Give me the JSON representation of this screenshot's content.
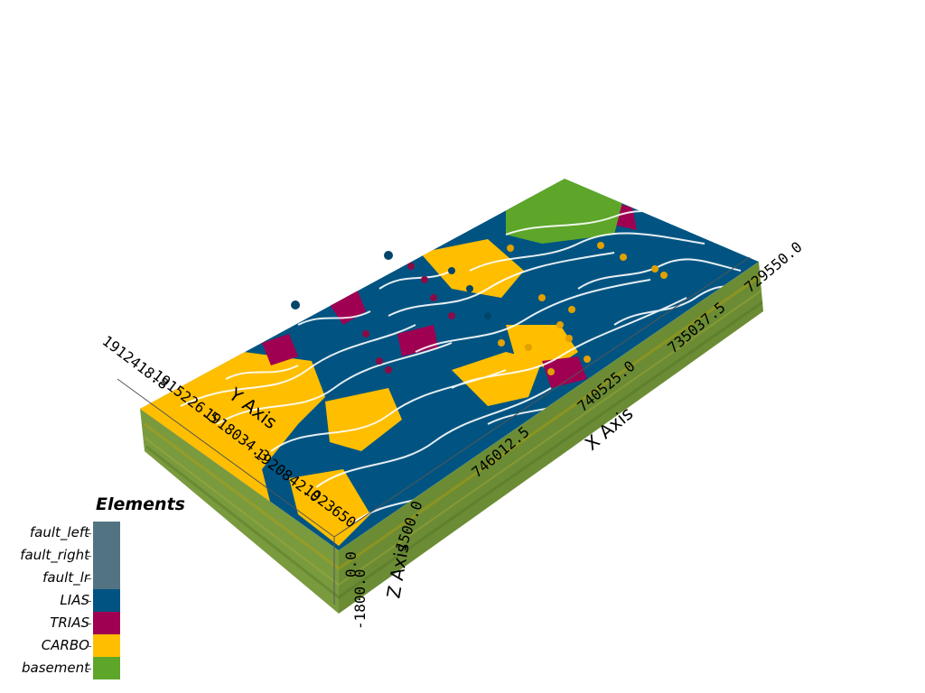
{
  "plot": {
    "x_axis": {
      "title": "X Axis",
      "ticks": [
        "746012.5",
        "740525.0",
        "735037.5",
        "729550.0"
      ]
    },
    "y_axis": {
      "title": "Y Axis",
      "ticks": [
        "1912418.8",
        "1915226.5",
        "1918034.3",
        "1920842.0",
        "1923650"
      ]
    },
    "z_axis": {
      "title": "Z Axis",
      "ticks": [
        "1500.0",
        "-1800.0",
        "0.0"
      ]
    }
  },
  "legend": {
    "title": "Elements",
    "items": [
      {
        "label": "fault_left",
        "color": "#527482"
      },
      {
        "label": "fault_right",
        "color": "#527482"
      },
      {
        "label": "fault_lr",
        "color": "#527482"
      },
      {
        "label": "LIAS",
        "color": "#015482"
      },
      {
        "label": "TRIAS",
        "color": "#9f0052"
      },
      {
        "label": "CARBO",
        "color": "#ffbe00"
      },
      {
        "label": "basement",
        "color": "#5da629"
      }
    ]
  },
  "colors": {
    "side_base": "#6e8f3a",
    "side_dark": "#5a7a2c",
    "contour": "#ffffff",
    "point_orange": "#e2a100",
    "point_blue": "#01456b",
    "point_red": "#8a0b45"
  }
}
